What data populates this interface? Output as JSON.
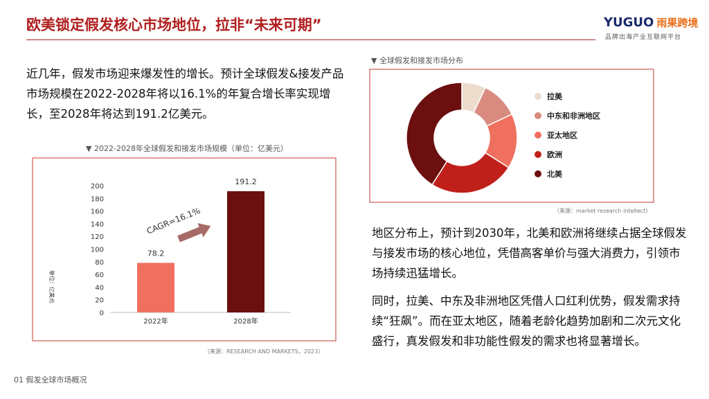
{
  "header": {
    "title": "欧美锁定假发核心市场地位，拉非“未来可期”",
    "logo": "YUGUO",
    "logo_cn": "雨果跨境",
    "tagline": "品牌出海产业互联网平台"
  },
  "paragraphs": [
    "近几年，假发市场迎来爆发性的增长。预计全球假发&接发产品市场规模在2022-2028年将以16.1%的年复合增长率实现增长，至2028年将达到191.2亿美元。",
    "地区分布上，预计到2030年，北美和欧洲将继续占据全球假发与接发市场的核心地位，凭借高客单价与强大消费力，引领市场持续迅猛增长。",
    "同时，拉美、中东及非洲地区凭借人口红利优势，假发需求持续“狂飙”。而在亚太地区，随着老龄化趋势加剧和二次元文化盛行，真发假发和非功能性假发的需求也将显著增长。"
  ],
  "footer": "01 假发全球市场概况",
  "chart_data": [
    {
      "type": "bar",
      "title": "▼  2022-2028年全球假发和接发市场规模（单位：亿美元）",
      "y_label": "单位：亿美元",
      "categories": [
        "2022年",
        "2028年"
      ],
      "values": [
        78.2,
        191.2
      ],
      "colors": [
        "#f07060",
        "#6b0f0f"
      ],
      "ylim": [
        0,
        200
      ],
      "yticks": [
        0,
        20,
        40,
        60,
        80,
        100,
        120,
        140,
        160,
        180,
        200
      ],
      "annotation": "CAGR=16.1%",
      "source": "（来源：RESEARCH AND MARKETS，2023）"
    },
    {
      "type": "pie",
      "title": "▼  全球假发和接发市场分布",
      "categories": [
        "拉美",
        "中东和非洲地区",
        "亚太地区",
        "欧洲",
        "北美"
      ],
      "values": [
        7,
        11,
        16,
        25,
        41
      ],
      "colors": [
        "#ecdccc",
        "#d98b80",
        "#f07060",
        "#c0201a",
        "#6b0f0f"
      ],
      "source": "（来源：market research intellect）"
    }
  ]
}
